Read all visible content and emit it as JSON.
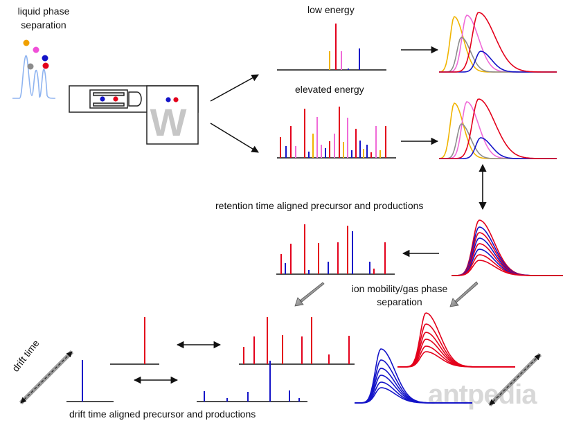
{
  "labels": {
    "liquid_phase_1": "liquid phase",
    "liquid_phase_2": "separation",
    "low_energy": "low energy",
    "elevated_energy": "elevated energy",
    "retention_aligned": "retention time aligned precursor and productions",
    "ion_mobility_1": "ion mobility/gas phase",
    "ion_mobility_2": "separation",
    "drift_aligned": "drift time aligned precursor and productions",
    "drift_time_axis": "drift time"
  },
  "instrument": {
    "tof_letter": "W"
  },
  "watermark": "antpedia",
  "colors": {
    "red": "#e3001b",
    "blue": "#1414c8",
    "gold": "#f0b400",
    "pink": "#f06ad8",
    "gray": "#8c8c8c",
    "lc_blue": "#8fb4f0"
  }
}
